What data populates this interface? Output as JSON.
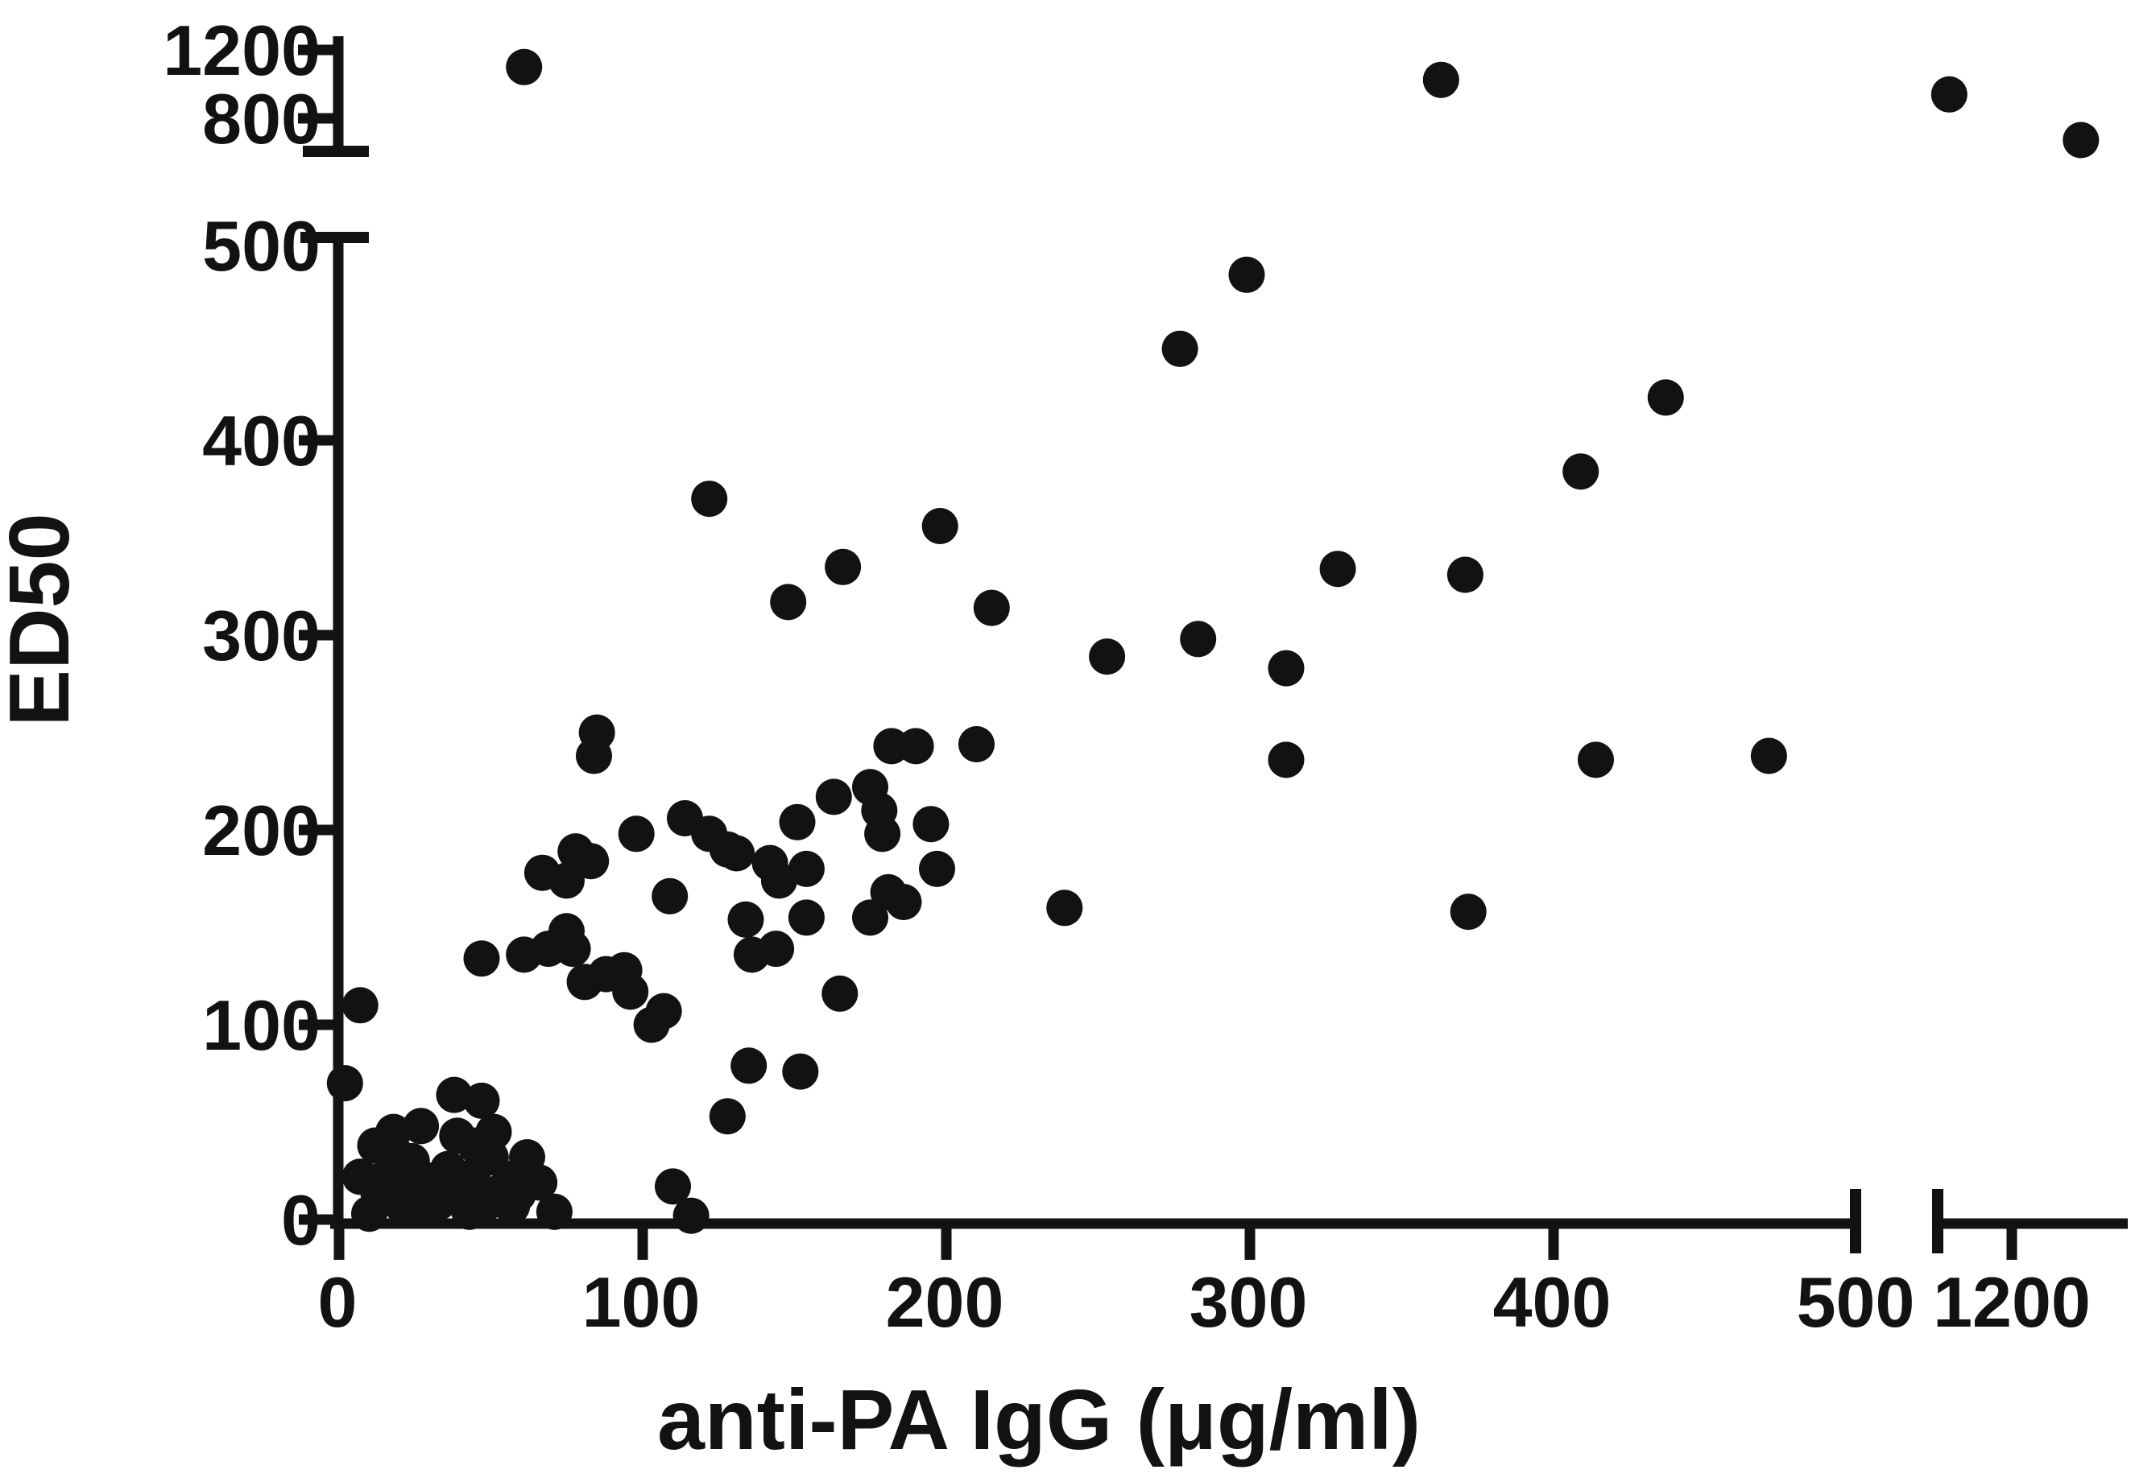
{
  "chart_data": {
    "type": "scatter",
    "title": "",
    "xlabel": "anti-PA IgG (μg/ml)",
    "ylabel": "ED50",
    "axis_color": "#121212",
    "point_color": "#121212",
    "legend": "none",
    "grid": false,
    "x_axis": {
      "main_range": [
        0,
        500
      ],
      "broken_segment_ticks": [
        1200
      ],
      "main_ticks": [
        0,
        100,
        200,
        300,
        400,
        500
      ]
    },
    "y_axis": {
      "main_range": [
        0,
        500
      ],
      "broken_segment_ticks": [
        800,
        1200
      ],
      "main_ticks": [
        0,
        100,
        200,
        300,
        400,
        500
      ]
    },
    "points": [
      [
        62,
        1100
      ],
      [
        364,
        1025
      ],
      [
        1055,
        940
      ],
      [
        1360,
        673
      ],
      [
        123,
        370
      ],
      [
        149,
        317
      ],
      [
        167,
        335
      ],
      [
        86,
        250
      ],
      [
        300,
        485
      ],
      [
        278,
        447
      ],
      [
        199,
        356
      ],
      [
        216,
        314
      ],
      [
        254,
        289
      ],
      [
        284,
        298
      ],
      [
        183,
        243
      ],
      [
        191,
        243
      ],
      [
        211,
        244
      ],
      [
        438,
        422
      ],
      [
        410,
        384
      ],
      [
        330,
        334
      ],
      [
        372,
        331
      ],
      [
        313,
        283
      ],
      [
        313,
        236
      ],
      [
        415,
        236
      ],
      [
        472,
        238
      ],
      [
        240,
        160
      ],
      [
        373,
        158
      ],
      [
        176,
        222
      ],
      [
        164,
        217
      ],
      [
        152,
        204
      ],
      [
        179,
        210
      ],
      [
        180,
        198
      ],
      [
        196,
        203
      ],
      [
        143,
        183
      ],
      [
        146,
        174
      ],
      [
        155,
        180
      ],
      [
        198,
        180
      ],
      [
        182,
        168
      ],
      [
        187,
        163
      ],
      [
        176,
        155
      ],
      [
        155,
        155
      ],
      [
        135,
        154
      ],
      [
        145,
        139
      ],
      [
        137,
        136
      ],
      [
        166,
        116
      ],
      [
        153,
        76
      ],
      [
        136,
        79
      ],
      [
        85,
        238
      ],
      [
        99,
        198
      ],
      [
        79,
        189
      ],
      [
        68,
        178
      ],
      [
        76,
        174
      ],
      [
        84,
        184
      ],
      [
        115,
        206
      ],
      [
        123,
        198
      ],
      [
        129,
        190
      ],
      [
        132,
        188
      ],
      [
        110,
        166
      ],
      [
        48,
        134
      ],
      [
        62,
        136
      ],
      [
        70,
        139
      ],
      [
        76,
        148
      ],
      [
        78,
        139
      ],
      [
        8,
        110
      ],
      [
        82,
        122
      ],
      [
        89,
        126
      ],
      [
        95,
        128
      ],
      [
        97,
        117
      ],
      [
        104,
        100
      ],
      [
        108,
        107
      ],
      [
        3,
        70
      ],
      [
        39,
        64
      ],
      [
        48,
        61
      ],
      [
        129,
        53
      ],
      [
        111,
        17
      ],
      [
        117,
        2
      ],
      [
        19,
        45
      ],
      [
        28,
        48
      ],
      [
        25,
        30
      ],
      [
        16,
        21
      ],
      [
        31,
        20
      ],
      [
        40,
        43
      ],
      [
        46,
        38
      ],
      [
        51,
        32
      ],
      [
        58,
        21
      ],
      [
        63,
        32
      ],
      [
        67,
        19
      ],
      [
        42,
        12
      ],
      [
        50,
        9
      ],
      [
        34,
        9
      ],
      [
        22,
        7
      ],
      [
        58,
        7
      ],
      [
        72,
        4
      ],
      [
        11,
        3
      ],
      [
        14,
        14
      ],
      [
        27,
        17
      ],
      [
        37,
        26
      ],
      [
        45,
        22
      ],
      [
        55,
        15
      ],
      [
        20,
        33
      ],
      [
        30,
        5
      ],
      [
        44,
        4
      ],
      [
        60,
        13
      ],
      [
        8,
        22
      ],
      [
        52,
        45
      ],
      [
        13,
        38
      ]
    ]
  }
}
